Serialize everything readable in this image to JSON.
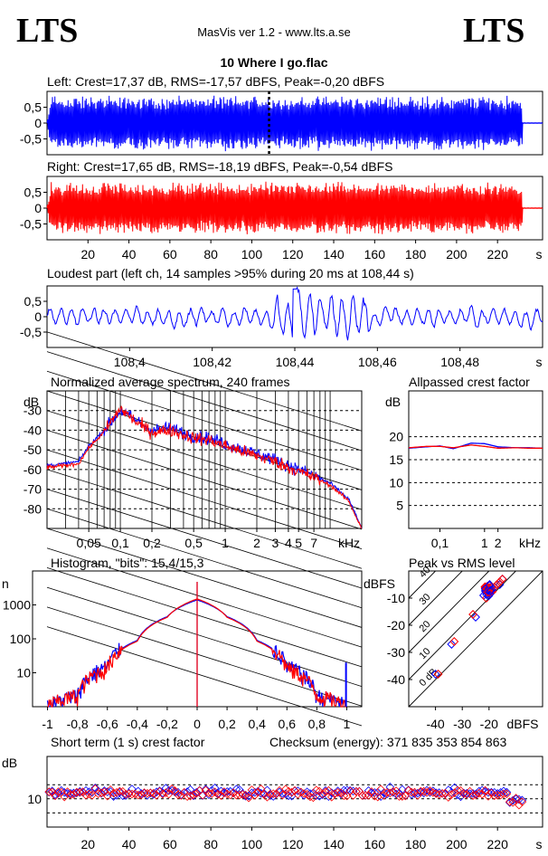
{
  "header": {
    "logo_left": "LTS",
    "logo_right": "LTS",
    "app_title": "MasVis ver 1.2 - www.lts.a.se",
    "file_title": "10 Where I go.flac"
  },
  "colors": {
    "left": "#0000ff",
    "right": "#ff0000",
    "axes": "#000000",
    "background": "#ffffff"
  },
  "chart_data": [
    {
      "id": "left",
      "type": "line",
      "title": "Left: Crest=17,37 dB, RMS=-17,57 dBFS, Peak=-0,20 dBFS",
      "ylim": [
        -1,
        1
      ],
      "yticks": [
        0.5,
        0,
        -0.5
      ],
      "ytick_labels": [
        "0,5",
        "0",
        "-0,5"
      ],
      "x_range_s": [
        0,
        242
      ],
      "envelope": {
        "attack_s": 2,
        "end_s": 232,
        "amplitude": 0.9
      },
      "loudest_marker_s": 108.44,
      "color": "#0000ff"
    },
    {
      "id": "right",
      "type": "line",
      "title": "Right: Crest=17,65 dB, RMS=-18,19 dBFS, Peak=-0,54 dBFS",
      "ylim": [
        -1,
        1
      ],
      "yticks": [
        0.5,
        0,
        -0.5
      ],
      "ytick_labels": [
        "0,5",
        "0",
        "-0,5"
      ],
      "x_range_s": [
        0,
        242
      ],
      "xticks": [
        20,
        40,
        60,
        80,
        100,
        120,
        140,
        160,
        180,
        200,
        220
      ],
      "x_unit": "s",
      "envelope": {
        "attack_s": 2,
        "end_s": 232,
        "amplitude": 0.85
      },
      "color": "#ff0000"
    },
    {
      "id": "loudest",
      "type": "line",
      "title": "Loudest part (left  ch, 14 samples >95% during 20 ms at 108,44 s)",
      "ylim": [
        -1,
        1
      ],
      "yticks": [
        0.5,
        0,
        -0.5
      ],
      "ytick_labels": [
        "0,5",
        "0",
        "-0,5"
      ],
      "x_range_s": [
        108.38,
        108.5
      ],
      "xticks": [
        108.4,
        108.42,
        108.44,
        108.46,
        108.48
      ],
      "xtick_labels": [
        "108,4",
        "108,42",
        "108,44",
        "108,46",
        "108,48"
      ],
      "x_unit": "s",
      "color": "#0000ff"
    },
    {
      "id": "spectrum",
      "type": "line",
      "title": "Normalized average spectrum, 240 frames",
      "ylabel": "dB",
      "x_scale": "log",
      "xlim_khz": [
        0.02,
        20
      ],
      "ylim": [
        -90,
        -20
      ],
      "yticks": [
        -30,
        -40,
        -50,
        -60,
        -70,
        -80
      ],
      "xticks": [
        0.05,
        0.1,
        0.2,
        0.5,
        1,
        2,
        3,
        4,
        5,
        7
      ],
      "xtick_labels": [
        "0,05",
        "0,1",
        "0,2",
        "0,5",
        "1",
        "2",
        "3",
        "4",
        "5",
        "7"
      ],
      "x_unit": "kHz",
      "series": [
        {
          "color": "#0000ff",
          "x": [
            0.02,
            0.03,
            0.04,
            0.05,
            0.07,
            0.1,
            0.15,
            0.2,
            0.3,
            0.5,
            0.7,
            1,
            1.5,
            2,
            3,
            5,
            7,
            10,
            15,
            20
          ],
          "y": [
            -58,
            -57,
            -56,
            -48,
            -40,
            -30,
            -36,
            -40,
            -39,
            -43,
            -44,
            -47,
            -50,
            -52,
            -55,
            -60,
            -63,
            -67,
            -75,
            -90
          ]
        },
        {
          "color": "#ff0000",
          "x": [
            0.02,
            0.03,
            0.04,
            0.05,
            0.07,
            0.1,
            0.15,
            0.2,
            0.3,
            0.5,
            0.7,
            1,
            1.5,
            2,
            3,
            5,
            7,
            10,
            15,
            20
          ],
          "y": [
            -59,
            -58,
            -57,
            -49,
            -41,
            -29,
            -37,
            -41,
            -40,
            -44,
            -45,
            -48,
            -51,
            -53,
            -56,
            -61,
            -64,
            -68,
            -76,
            -90
          ]
        }
      ]
    },
    {
      "id": "allpass",
      "type": "line",
      "title": "Allpassed crest factor",
      "ylabel": "dB",
      "x_scale": "log",
      "xlim_khz": [
        0.02,
        20
      ],
      "ylim": [
        0,
        30
      ],
      "yticks": [
        20,
        15,
        10,
        5
      ],
      "xticks": [
        0.1,
        1,
        2
      ],
      "xtick_labels": [
        "0,1",
        "1",
        "2"
      ],
      "x_unit": "kHz",
      "series": [
        {
          "color": "#0000ff",
          "x": [
            0.02,
            0.05,
            0.1,
            0.2,
            0.5,
            1,
            2,
            5,
            10,
            20
          ],
          "y": [
            17.5,
            17.8,
            18.0,
            17.4,
            18.6,
            18.5,
            17.8,
            17.6,
            17.6,
            17.5
          ]
        },
        {
          "color": "#ff0000",
          "x": [
            0.02,
            0.05,
            0.1,
            0.2,
            0.5,
            1,
            2,
            5,
            10,
            20
          ],
          "y": [
            17.6,
            17.9,
            17.9,
            17.6,
            18.2,
            17.9,
            17.5,
            17.6,
            17.5,
            17.5
          ]
        }
      ]
    },
    {
      "id": "histogram",
      "type": "line",
      "title": "Histogram, \"bits\": 15,4/15,3",
      "ylabel": "n",
      "y_scale": "log",
      "xlim": [
        -1.1,
        1.1
      ],
      "ylim_log": [
        1,
        10000
      ],
      "yticks": [
        1000,
        100,
        10
      ],
      "xticks": [
        -1,
        -0.8,
        -0.6,
        -0.4,
        -0.2,
        0,
        0.2,
        0.4,
        0.6,
        0.8,
        1
      ],
      "xtick_labels": [
        "-1",
        "-0,8",
        "-0,6",
        "-0,4",
        "-0,2",
        "0",
        "0,2",
        "0,4",
        "0,6",
        "0,8",
        "1"
      ],
      "series": [
        {
          "color": "#0000ff",
          "x": [
            -1,
            -0.8,
            -0.6,
            -0.4,
            -0.2,
            0,
            0.2,
            0.4,
            0.6,
            0.8,
            1
          ],
          "y": [
            1,
            2,
            15,
            90,
            450,
            1400,
            450,
            90,
            15,
            2,
            1
          ]
        },
        {
          "color": "#ff0000",
          "x": [
            -1,
            -0.8,
            -0.6,
            -0.4,
            -0.2,
            0,
            0.2,
            0.4,
            0.6,
            0.8,
            1
          ],
          "y": [
            1,
            2,
            13,
            85,
            430,
            1500,
            430,
            85,
            13,
            2,
            1
          ]
        }
      ]
    },
    {
      "id": "peak_rms",
      "type": "scatter",
      "title": "Peak vs RMS level",
      "ylabel": "dBFS",
      "xlabel": "dBFS",
      "xlim": [
        -50,
        0
      ],
      "ylim": [
        -50,
        0
      ],
      "xticks": [
        -40,
        -30,
        -20
      ],
      "yticks": [
        -10,
        -20,
        -30,
        -40
      ],
      "diagonal_labels": [
        "40",
        "30",
        "20",
        "10",
        "0 dB"
      ],
      "series": [
        {
          "color": "#0000ff",
          "x": [
            -40,
            -34,
            -25,
            -22,
            -20,
            -19,
            -18,
            -17,
            -16,
            -15
          ],
          "y": [
            -38,
            -27,
            -17,
            -9,
            -8,
            -7,
            -6,
            -5,
            -5,
            -3
          ]
        },
        {
          "color": "#ff0000",
          "x": [
            -39,
            -33,
            -26,
            -21,
            -20,
            -19,
            -18,
            -17,
            -16,
            -15
          ],
          "y": [
            -38,
            -26,
            -16,
            -10,
            -8,
            -7,
            -6,
            -5,
            -4,
            -3
          ]
        }
      ]
    },
    {
      "id": "short_term_crest",
      "type": "scatter",
      "title": "Short term (1 s) crest factor",
      "annotation": "Checksum (energy):  371 835 353 854 863",
      "ylabel": "dB",
      "ylim": [
        0,
        25
      ],
      "yticks": [
        10
      ],
      "xticks": [
        20,
        40,
        60,
        80,
        100,
        120,
        140,
        160,
        180,
        200,
        220
      ],
      "x_unit": "s",
      "x_range_s": [
        0,
        242
      ],
      "series": [
        {
          "color": "#0000ff",
          "mean": 12.2,
          "spread": 1.5
        },
        {
          "color": "#ff0000",
          "mean": 12.0,
          "spread": 1.5
        }
      ]
    }
  ]
}
